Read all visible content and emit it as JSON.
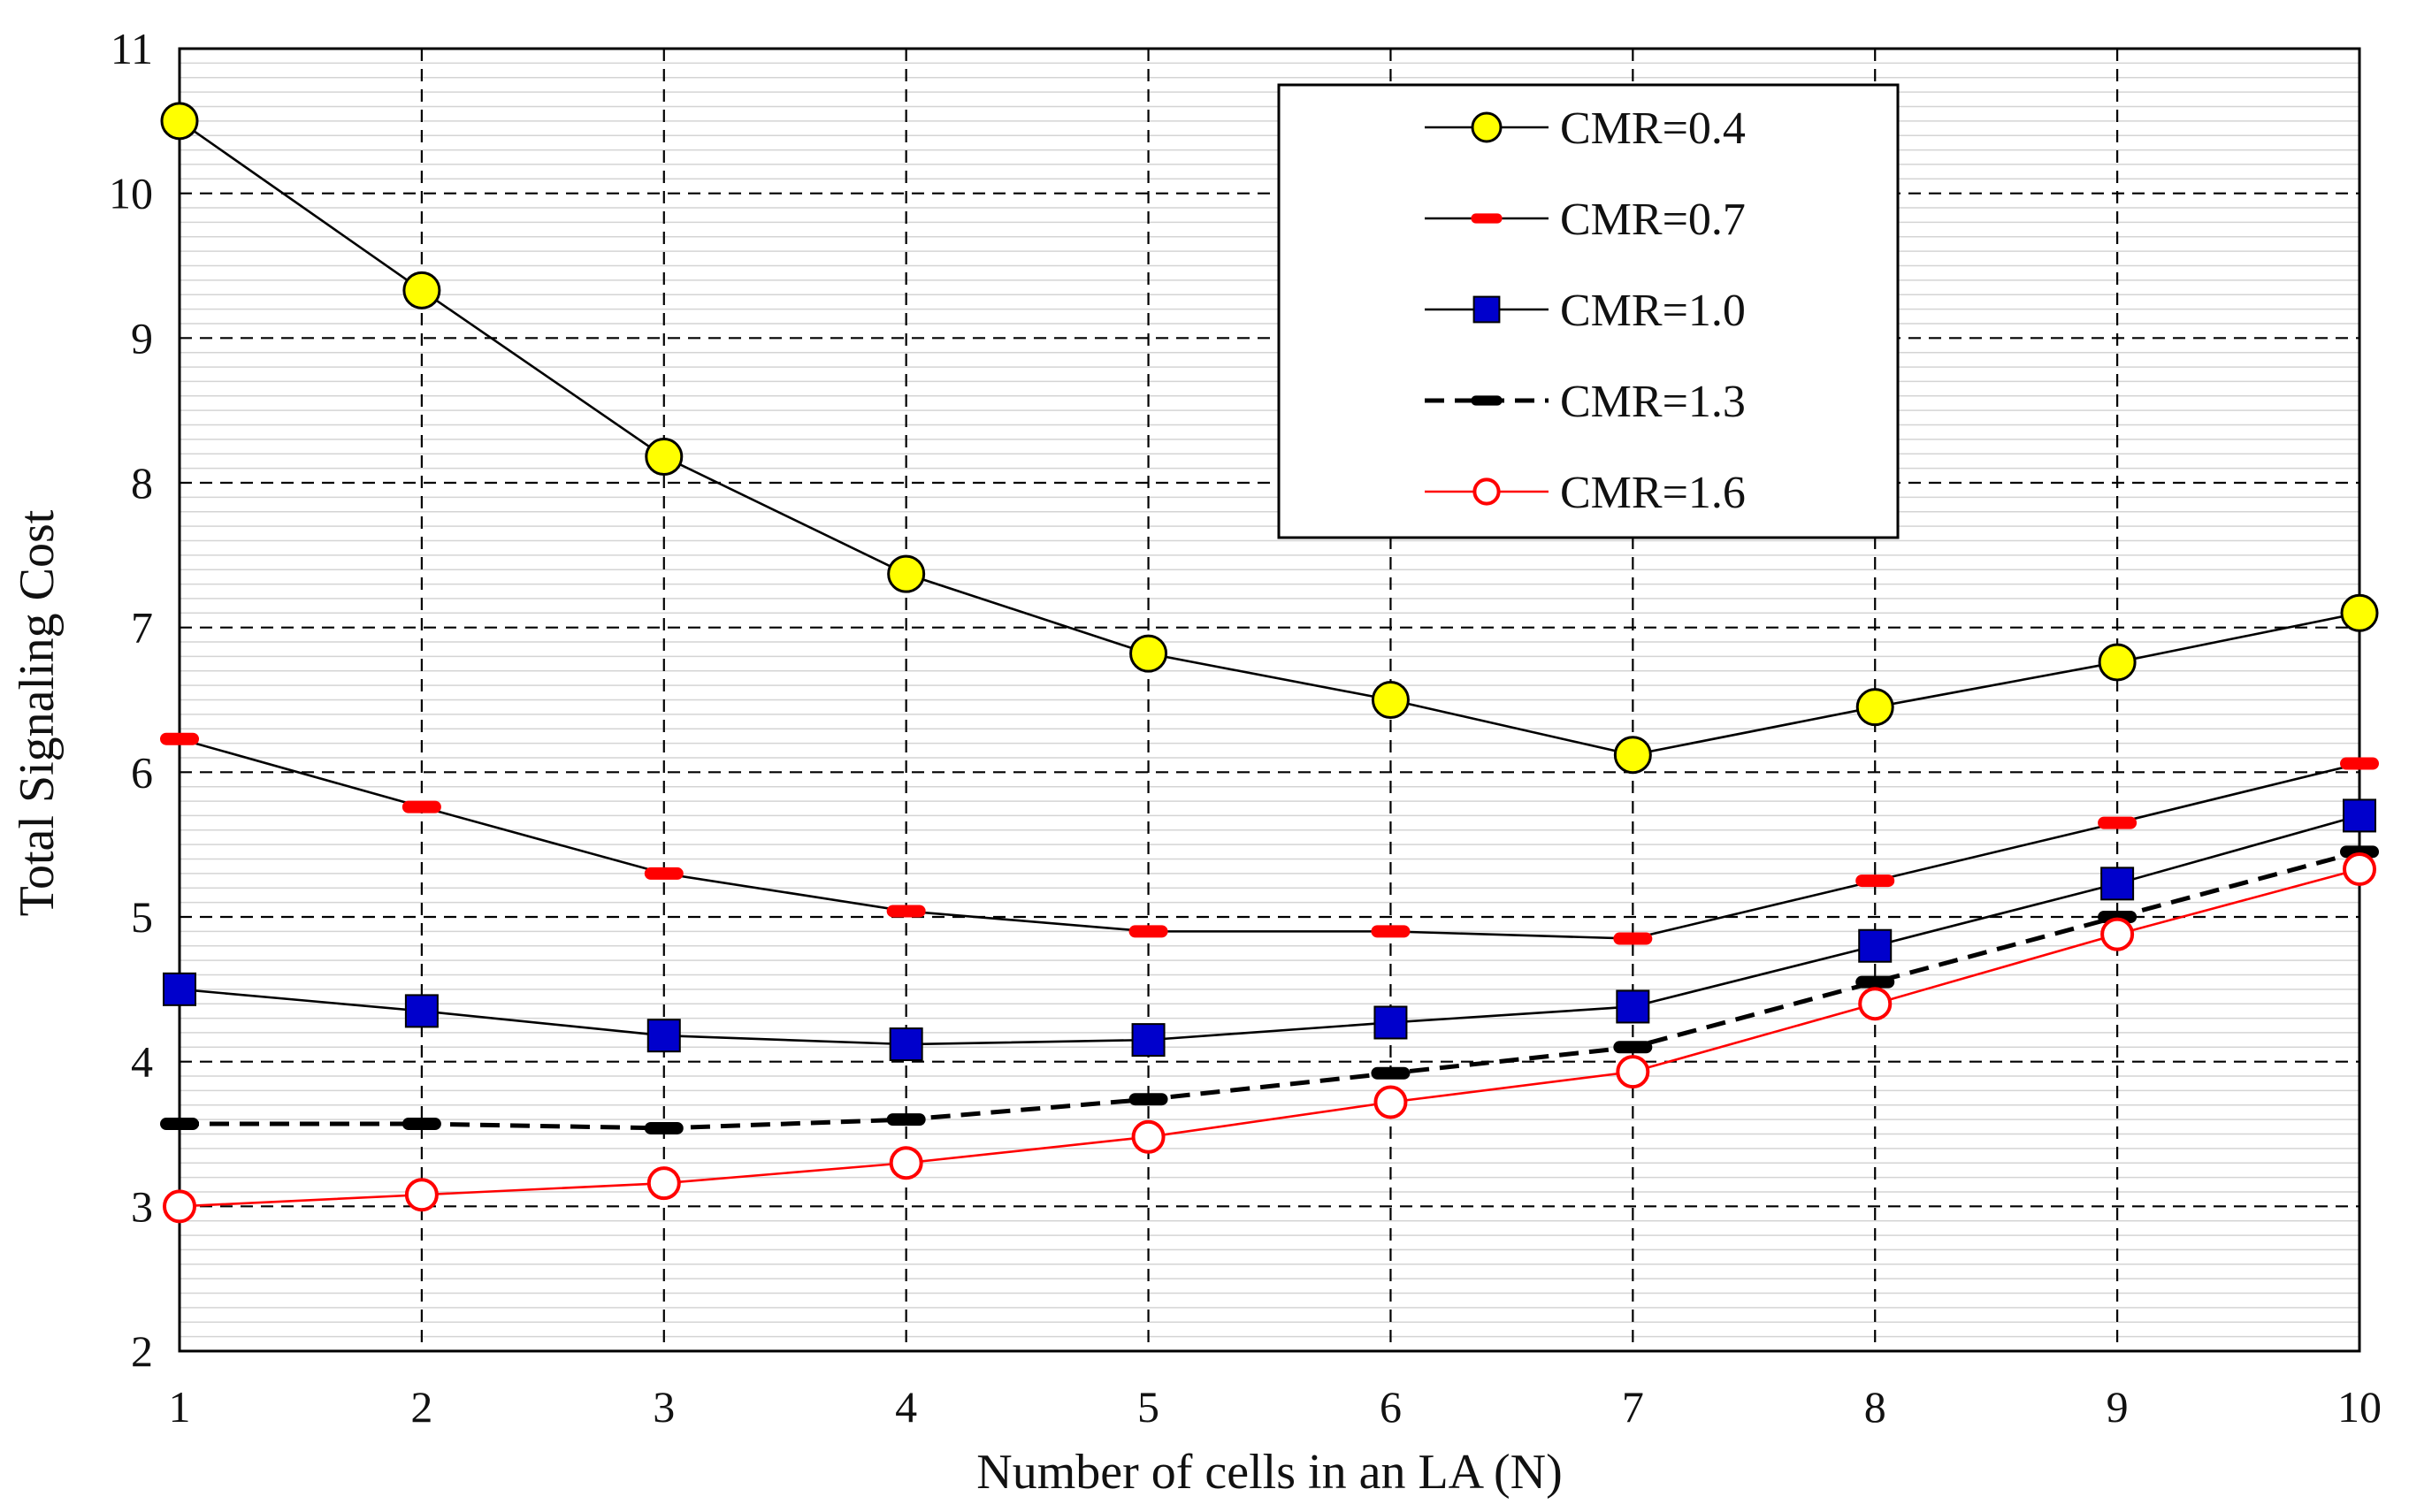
{
  "chart_data": {
    "type": "line",
    "title": "",
    "xlabel": "Number of cells in an LA (N)",
    "ylabel": "Total Signaling Cost",
    "xlim": [
      1,
      10
    ],
    "ylim": [
      2,
      11
    ],
    "x": [
      1,
      2,
      3,
      4,
      5,
      6,
      7,
      8,
      9,
      10
    ],
    "x_ticks": [
      "1",
      "2",
      "3",
      "4",
      "5",
      "6",
      "7",
      "8",
      "9",
      "10"
    ],
    "y_ticks": [
      "2",
      "3",
      "4",
      "5",
      "6",
      "7",
      "8",
      "9",
      "10",
      "11"
    ],
    "grid": true,
    "legend_position": "top-right",
    "series": [
      {
        "name": "CMR=0.4",
        "values": [
          10.5,
          9.33,
          8.18,
          7.37,
          6.82,
          6.5,
          6.12,
          6.45,
          6.76,
          7.1
        ],
        "marker": "circle-filled",
        "line_style": "solid",
        "line_color": "#000000",
        "marker_fill": "#ffff00",
        "marker_stroke": "#000000"
      },
      {
        "name": "CMR=0.7",
        "values": [
          6.23,
          5.76,
          5.3,
          5.04,
          4.9,
          4.9,
          4.85,
          5.25,
          5.65,
          6.06
        ],
        "marker": "dash",
        "line_style": "solid",
        "line_color": "#000000",
        "marker_fill": "#ff0000",
        "marker_stroke": "#ff0000"
      },
      {
        "name": "CMR=1.0",
        "values": [
          4.5,
          4.35,
          4.18,
          4.12,
          4.15,
          4.27,
          4.38,
          4.8,
          5.23,
          5.7
        ],
        "marker": "square",
        "line_style": "solid",
        "line_color": "#000000",
        "marker_fill": "#0000cc",
        "marker_stroke": "#000000"
      },
      {
        "name": "CMR=1.3",
        "values": [
          3.57,
          3.57,
          3.54,
          3.6,
          3.74,
          3.92,
          4.1,
          4.55,
          5.0,
          5.45
        ],
        "marker": "dash",
        "line_style": "dashed",
        "line_color": "#000000",
        "marker_fill": "#000000",
        "marker_stroke": "#000000"
      },
      {
        "name": "CMR=1.6",
        "values": [
          3.0,
          3.08,
          3.16,
          3.3,
          3.48,
          3.72,
          3.93,
          4.4,
          4.88,
          5.33
        ],
        "marker": "circle-open",
        "line_style": "solid",
        "line_color": "#ff0000",
        "marker_fill": "#ffffff",
        "marker_stroke": "#ff0000"
      }
    ]
  }
}
